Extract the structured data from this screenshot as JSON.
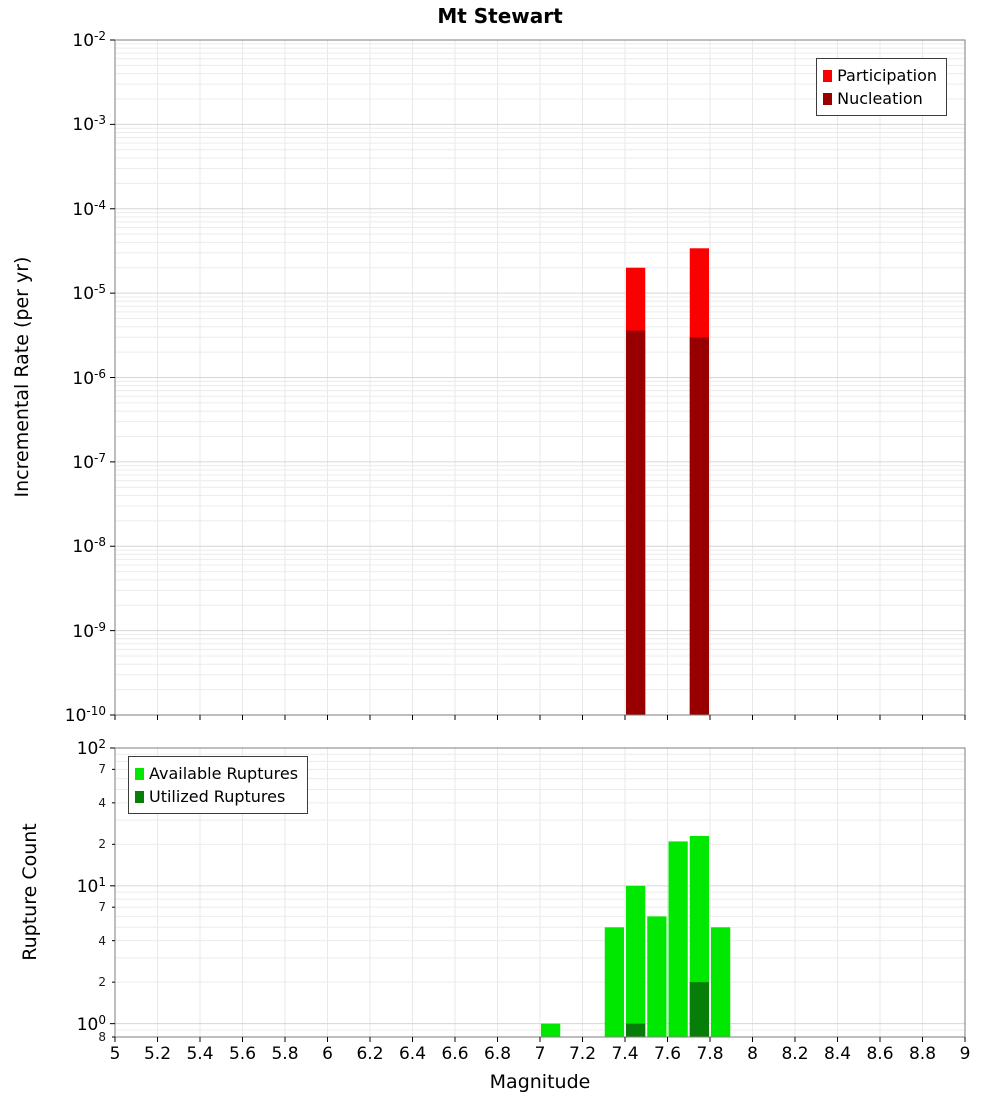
{
  "title": "Mt Stewart",
  "chart_data": [
    {
      "type": "bar",
      "panel": "incremental-rate",
      "title": "Mt Stewart",
      "ylabel": "Incremental Rate (per yr)",
      "xlabel": "",
      "yscale": "log",
      "ylim": [
        1e-10,
        0.01
      ],
      "xlim": [
        5,
        9
      ],
      "xticks": [
        "5",
        "5.2",
        "5.4",
        "5.6",
        "5.8",
        "6",
        "6.2",
        "6.4",
        "6.6",
        "6.8",
        "7",
        "7.2",
        "7.4",
        "7.6",
        "7.8",
        "8",
        "8.2",
        "8.4",
        "8.6",
        "8.8",
        "9"
      ],
      "show_x_tick_labels": false,
      "y_minor_labels": [],
      "bar_width": 0.1,
      "grid": true,
      "legend": {
        "position": "top-right",
        "entries": [
          {
            "label": "Participation",
            "color": "#fb0000"
          },
          {
            "label": "Nucleation",
            "color": "#980000"
          }
        ]
      },
      "series": [
        {
          "name": "Participation",
          "color": "#fb0000",
          "points": [
            {
              "x": 7.45,
              "y": 2e-05
            },
            {
              "x": 7.75,
              "y": 3.4e-05
            }
          ]
        },
        {
          "name": "Nucleation",
          "color": "#980000",
          "points": [
            {
              "x": 7.45,
              "y": 3.6e-06
            },
            {
              "x": 7.75,
              "y": 3e-06
            }
          ]
        }
      ]
    },
    {
      "type": "bar",
      "panel": "rupture-count",
      "title": "",
      "ylabel": "Rupture Count",
      "xlabel": "Magnitude",
      "yscale": "log",
      "ylim": [
        0.8,
        100
      ],
      "xlim": [
        5,
        9
      ],
      "xticks": [
        "5",
        "5.2",
        "5.4",
        "5.6",
        "5.8",
        "6",
        "6.2",
        "6.4",
        "6.6",
        "6.8",
        "7",
        "7.2",
        "7.4",
        "7.6",
        "7.8",
        "8",
        "8.2",
        "8.4",
        "8.6",
        "8.8",
        "9"
      ],
      "show_x_tick_labels": true,
      "y_minor_labels": [
        70,
        40,
        20,
        7,
        4,
        2,
        0.8
      ],
      "bar_width": 0.1,
      "grid": true,
      "legend": {
        "position": "top-left",
        "entries": [
          {
            "label": "Available Ruptures",
            "color": "#00e800"
          },
          {
            "label": "Utilized Ruptures",
            "color": "#077e07"
          }
        ]
      },
      "series": [
        {
          "name": "Available Ruptures",
          "color": "#00e800",
          "points": [
            {
              "x": 7.05,
              "y": 1
            },
            {
              "x": 7.35,
              "y": 5
            },
            {
              "x": 7.45,
              "y": 10
            },
            {
              "x": 7.55,
              "y": 6
            },
            {
              "x": 7.65,
              "y": 21
            },
            {
              "x": 7.75,
              "y": 23
            },
            {
              "x": 7.85,
              "y": 5
            }
          ]
        },
        {
          "name": "Utilized Ruptures",
          "color": "#077e07",
          "points": [
            {
              "x": 7.45,
              "y": 1
            },
            {
              "x": 7.75,
              "y": 2
            }
          ]
        }
      ]
    }
  ]
}
